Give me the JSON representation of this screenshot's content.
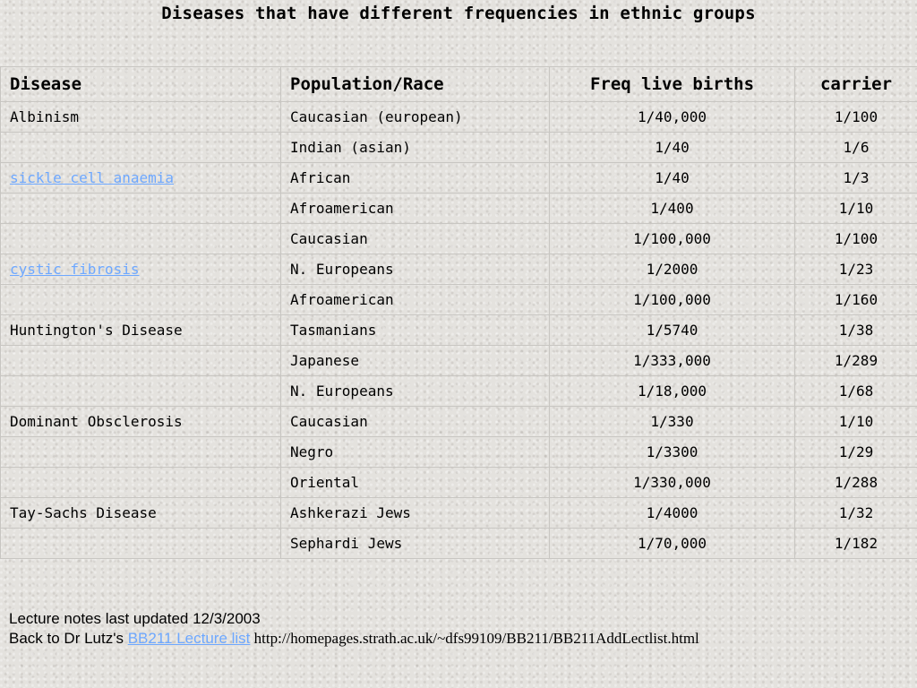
{
  "title": "Diseases that have different frequencies in ethnic groups",
  "table": {
    "headers": [
      "Disease",
      "Population/Race",
      "Freq live births",
      "carrier"
    ],
    "rows": [
      {
        "disease": "Albinism",
        "link": false,
        "population": "Caucasian (european)",
        "freq": "1/40,000",
        "carrier": "1/100"
      },
      {
        "disease": "",
        "link": false,
        "population": "Indian (asian)",
        "freq": "1/40",
        "carrier": "1/6"
      },
      {
        "disease": "sickle cell anaemia",
        "link": true,
        "population": "African",
        "freq": "1/40",
        "carrier": "1/3"
      },
      {
        "disease": "",
        "link": false,
        "population": "Afroamerican",
        "freq": "1/400",
        "carrier": "1/10"
      },
      {
        "disease": "",
        "link": false,
        "population": "Caucasian",
        "freq": "1/100,000",
        "carrier": "1/100"
      },
      {
        "disease": "cystic fibrosis",
        "link": true,
        "population": "N. Europeans",
        "freq": "1/2000",
        "carrier": "1/23"
      },
      {
        "disease": "",
        "link": false,
        "population": "Afroamerican",
        "freq": "1/100,000",
        "carrier": "1/160"
      },
      {
        "disease": "Huntington's Disease",
        "link": false,
        "population": "Tasmanians",
        "freq": "1/5740",
        "carrier": "1/38"
      },
      {
        "disease": "",
        "link": false,
        "population": "Japanese",
        "freq": "1/333,000",
        "carrier": "1/289"
      },
      {
        "disease": "",
        "link": false,
        "population": "N. Europeans",
        "freq": "1/18,000",
        "carrier": "1/68"
      },
      {
        "disease": "Dominant Obsclerosis",
        "link": false,
        "population": "Caucasian",
        "freq": "1/330",
        "carrier": "1/10"
      },
      {
        "disease": "",
        "link": false,
        "population": "Negro",
        "freq": "1/3300",
        "carrier": "1/29"
      },
      {
        "disease": "",
        "link": false,
        "population": "Oriental",
        "freq": "1/330,000",
        "carrier": "1/288"
      },
      {
        "disease": "Tay-Sachs Disease",
        "link": false,
        "population": "Ashkerazi Jews",
        "freq": "1/4000",
        "carrier": "1/32"
      },
      {
        "disease": "",
        "link": false,
        "population": "Sephardi Jews",
        "freq": "1/70,000",
        "carrier": "1/182"
      }
    ]
  },
  "footer": {
    "updated": "Lecture notes last updated 12/3/2003",
    "back_prefix": "Back to Dr Lutz's ",
    "back_link": "BB211 Lecture list",
    "url": " http://homepages.strath.ac.uk/~dfs99109/BB211/BB211AddLectlist.html"
  },
  "colors": {
    "link": "#6ea8ff",
    "background": "#e4e2de"
  }
}
